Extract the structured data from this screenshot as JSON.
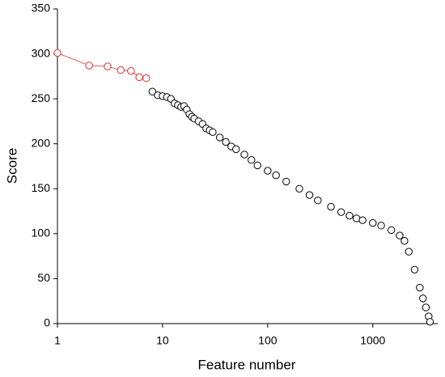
{
  "chart_data": {
    "type": "scatter",
    "xlabel": "Feature number",
    "ylabel": "Score",
    "xscale": "log",
    "xlim": [
      1,
      4000
    ],
    "xticks": [
      1,
      10,
      100,
      1000
    ],
    "ylim": [
      0,
      350
    ],
    "yticks": [
      0,
      50,
      100,
      150,
      200,
      250,
      300,
      350
    ],
    "series": [
      {
        "color": "#000000",
        "connected": false,
        "x": [
          8,
          9,
          10,
          11,
          12,
          13,
          14,
          15,
          16,
          17,
          18,
          19,
          20,
          22,
          24,
          26,
          28,
          30,
          35,
          40,
          45,
          50,
          60,
          70,
          80,
          100,
          120,
          150,
          200,
          250,
          300,
          400,
          500,
          600,
          700,
          800,
          1000,
          1200,
          1500,
          1800,
          2000,
          2200,
          2500,
          2800,
          3000,
          3200,
          3400,
          3500
        ],
        "values": [
          258,
          254,
          253,
          252,
          250,
          245,
          243,
          241,
          242,
          238,
          233,
          230,
          228,
          225,
          222,
          217,
          215,
          213,
          207,
          202,
          197,
          194,
          188,
          182,
          176,
          170,
          165,
          158,
          150,
          143,
          137,
          130,
          124,
          120,
          117,
          115,
          112,
          109,
          104,
          98,
          92,
          80,
          60,
          40,
          28,
          18,
          8,
          2
        ]
      },
      {
        "color": "#e03030",
        "connected": true,
        "x": [
          1,
          2,
          3,
          4,
          5,
          6,
          7
        ],
        "values": [
          301,
          287,
          286,
          282,
          281,
          274,
          273
        ]
      }
    ]
  }
}
